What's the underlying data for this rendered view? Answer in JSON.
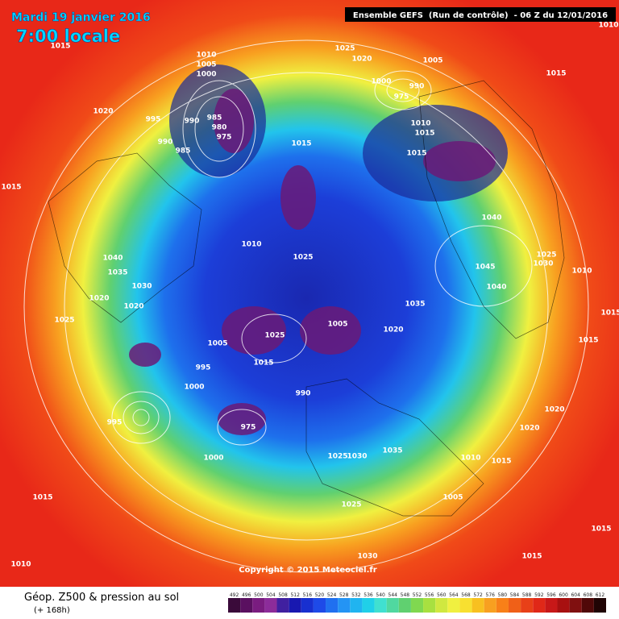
{
  "header": {
    "date": "Mardi 19 janvier 2016",
    "time": "7:00 locale",
    "run": "Ensemble GEFS  (Run de contrôle)  - 06 Z du 12/01/2016"
  },
  "map": {
    "copyright": "Copyright © 2015 Meteociel.fr",
    "isobar_labels": [
      1010,
      1005,
      1000,
      985,
      990,
      995,
      980,
      975,
      990,
      985,
      1025,
      1020,
      1005,
      1000,
      990,
      975,
      1010,
      1015,
      1015,
      1015,
      1020,
      1015,
      1040,
      1035,
      1030,
      1020,
      1020,
      1025,
      1010,
      1025,
      1005,
      1025,
      995,
      1000,
      1015,
      1005,
      1020,
      990,
      1035,
      1040,
      1045,
      1040,
      1025,
      1030,
      1010,
      1015,
      1020,
      1020,
      1035,
      1025,
      1005,
      1015,
      1010,
      1015,
      1010,
      1015,
      1030,
      1015,
      975,
      995,
      1000,
      1015,
      1010,
      1015,
      1015,
      1025,
      1030
    ]
  },
  "footer": {
    "title": "Géop. Z500 & pression au sol",
    "lead": "(+ 168h)",
    "scale": {
      "ticks": [
        492,
        496,
        500,
        504,
        508,
        512,
        516,
        520,
        524,
        528,
        532,
        536,
        540,
        544,
        548,
        552,
        556,
        560,
        564,
        568,
        572,
        576,
        580,
        584,
        588,
        592,
        596,
        600,
        604,
        608,
        612
      ],
      "colors": [
        "#3a0a3a",
        "#5a1060",
        "#7a1c80",
        "#8c2c9a",
        "#4020a0",
        "#1818b0",
        "#1830d0",
        "#1e4ae8",
        "#2070f0",
        "#2494f4",
        "#20b4f0",
        "#20d0e8",
        "#40e0d0",
        "#50d8a0",
        "#60d070",
        "#80d850",
        "#a8e040",
        "#d0e840",
        "#f0f040",
        "#f8e030",
        "#f8c020",
        "#f8a020",
        "#f88018",
        "#f06018",
        "#e84018",
        "#e02818",
        "#c81818",
        "#a81010",
        "#801010",
        "#500808",
        "#200404"
      ]
    }
  }
}
